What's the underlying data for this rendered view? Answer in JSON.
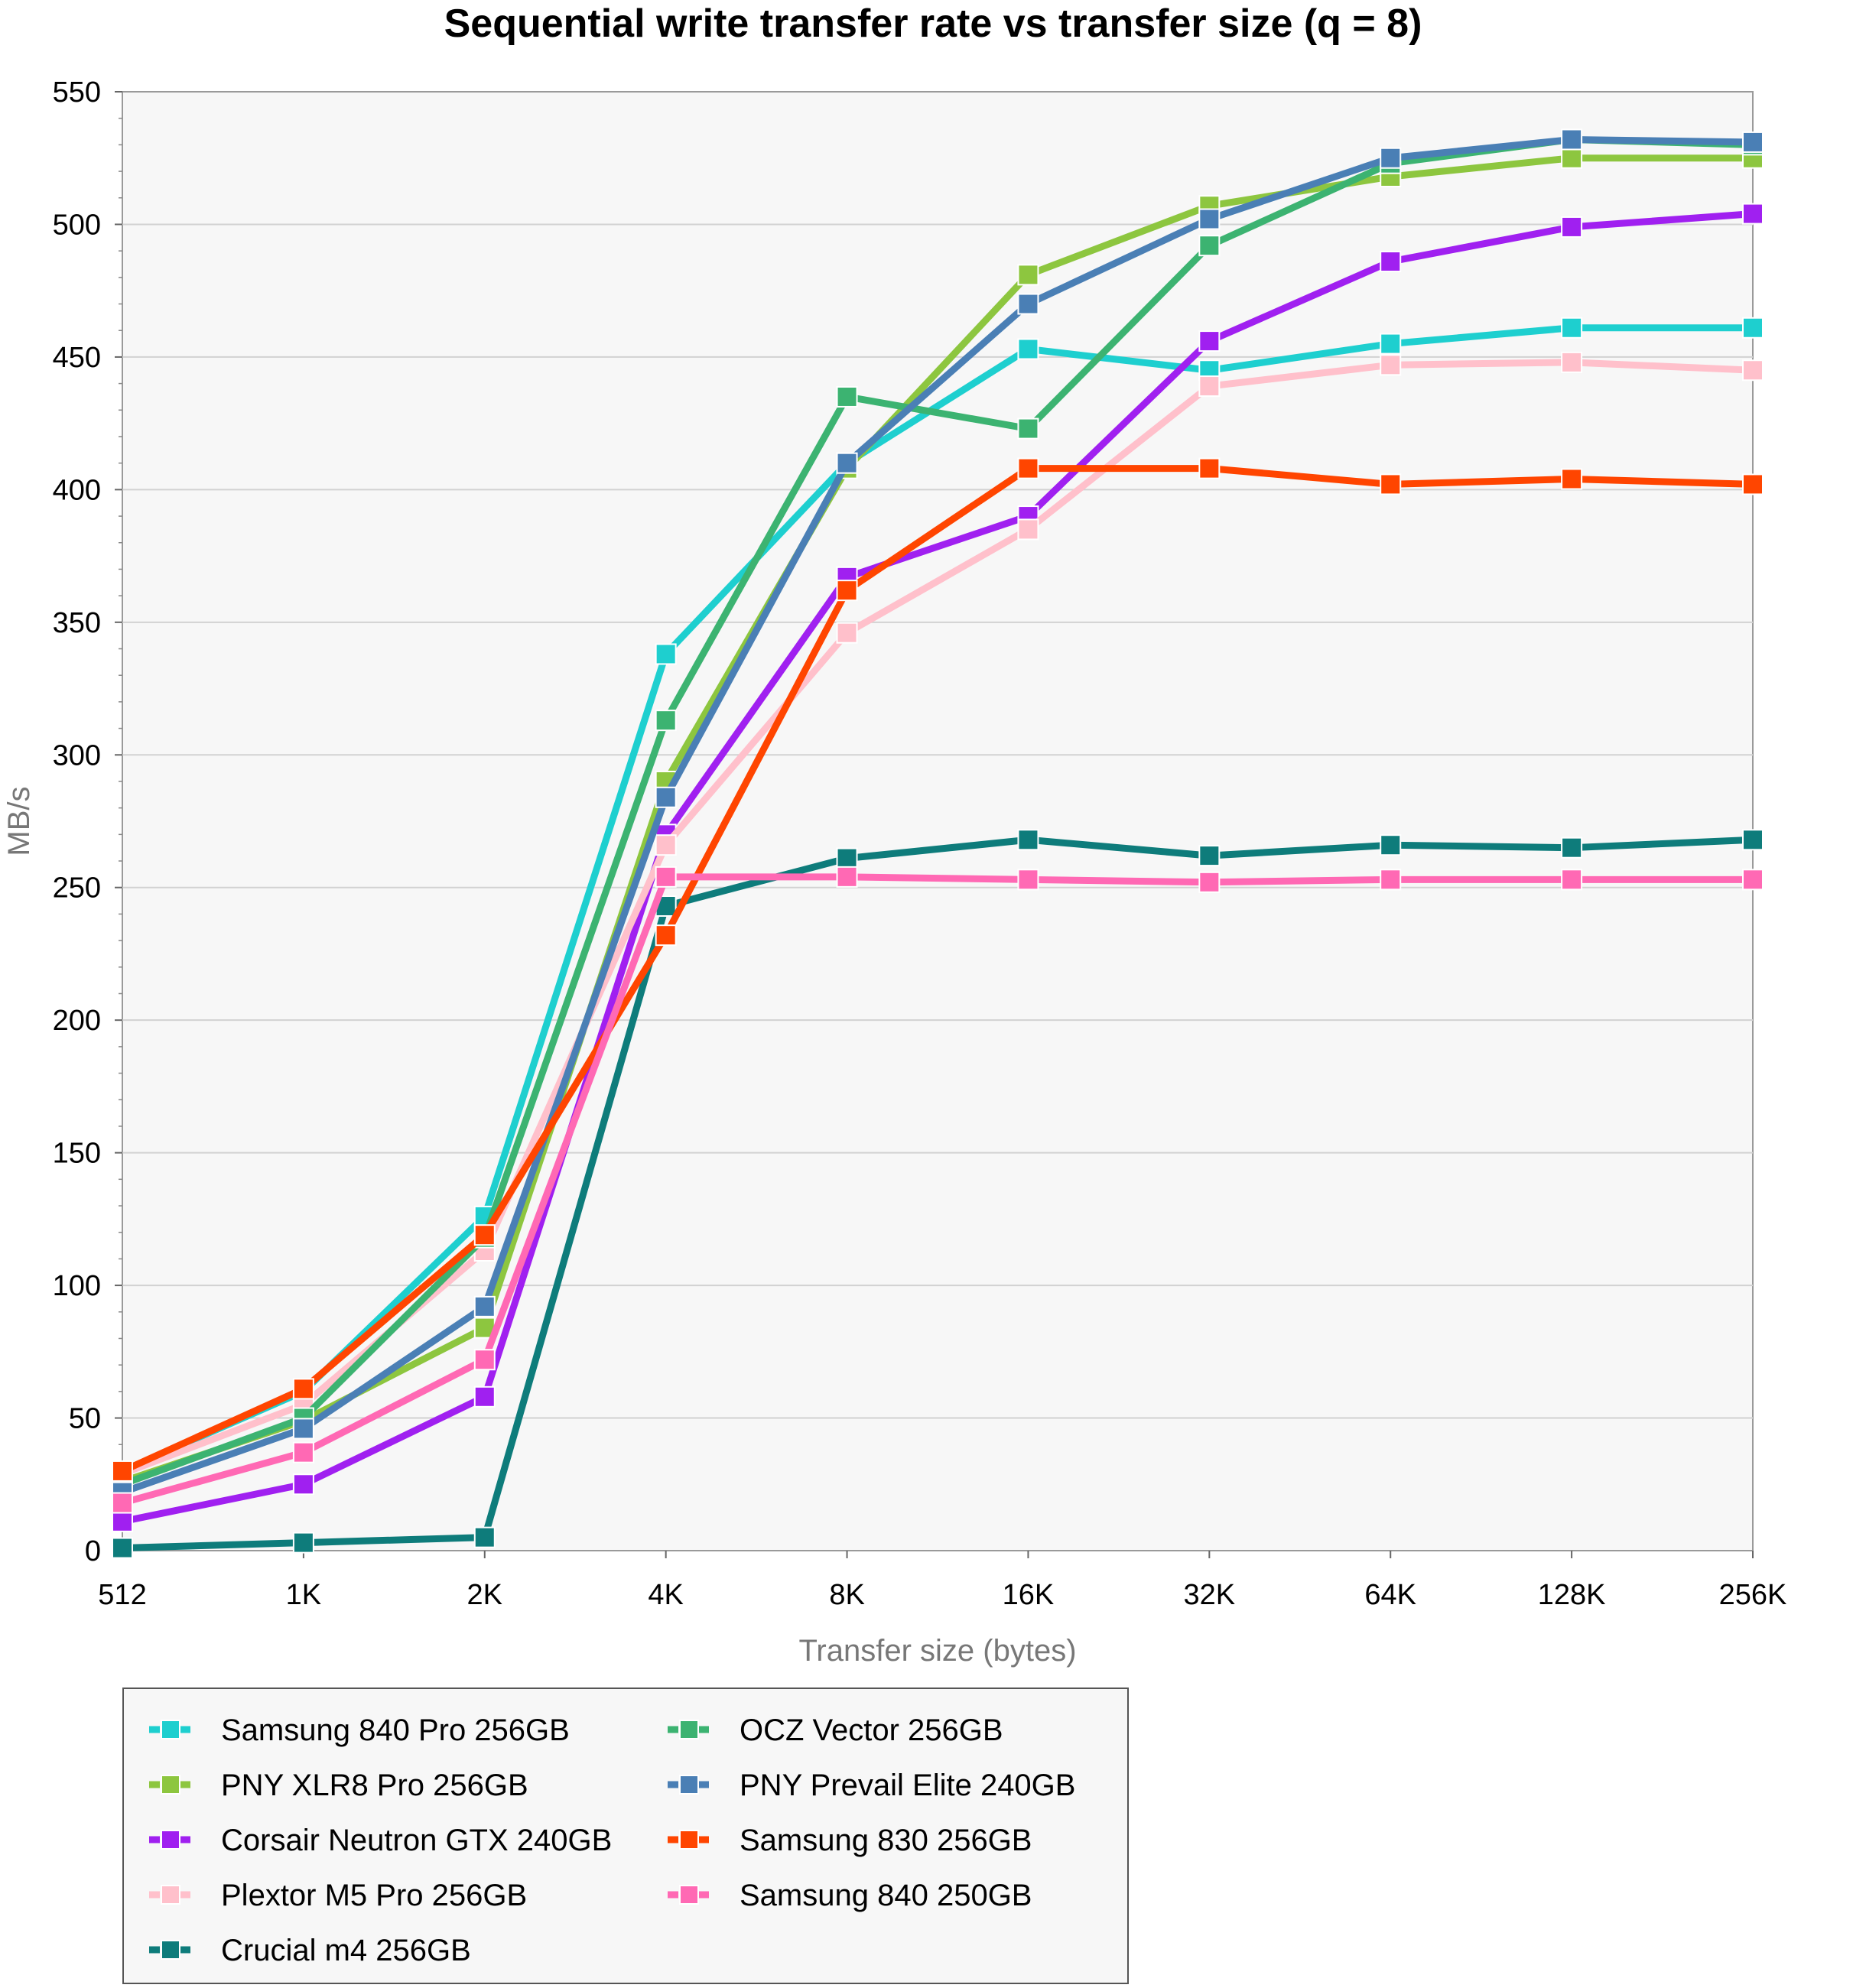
{
  "chart_data": {
    "type": "line",
    "title": "Sequential write transfer rate vs transfer size (q = 8)",
    "xlabel": "Transfer size (bytes)",
    "ylabel": "MB/s",
    "categories": [
      "512",
      "1K",
      "2K",
      "4K",
      "8K",
      "16K",
      "32K",
      "64K",
      "128K",
      "256K"
    ],
    "ylim": [
      0,
      550
    ],
    "yticks": [
      0,
      50,
      100,
      150,
      200,
      250,
      300,
      350,
      400,
      450,
      500,
      550
    ],
    "grid": true,
    "series": [
      {
        "name": "Samsung 840 Pro 256GB",
        "color": "#1ECFCF",
        "values": [
          30,
          60,
          126,
          338,
          410,
          453,
          445,
          455,
          461,
          461
        ]
      },
      {
        "name": "PNY XLR8 Pro 256GB",
        "color": "#8DC63F",
        "values": [
          26,
          49,
          84,
          290,
          408,
          481,
          507,
          518,
          525,
          525
        ]
      },
      {
        "name": "Corsair Neutron GTX 240GB",
        "color": "#A020F0",
        "values": [
          11,
          25,
          58,
          270,
          367,
          390,
          456,
          486,
          499,
          504
        ]
      },
      {
        "name": "Plextor M5 Pro 256GB",
        "color": "#FFC0CB",
        "values": [
          29,
          55,
          113,
          266,
          346,
          385,
          439,
          447,
          448,
          445
        ]
      },
      {
        "name": "Crucial m4 256GB",
        "color": "#0E7C7B",
        "values": [
          1,
          3,
          5,
          243,
          261,
          268,
          262,
          266,
          265,
          268
        ]
      },
      {
        "name": "OCZ Vector 256GB",
        "color": "#3CB371",
        "values": [
          25,
          50,
          118,
          313,
          435,
          423,
          492,
          523,
          532,
          530
        ]
      },
      {
        "name": "PNY Prevail Elite 240GB",
        "color": "#4A7FB5",
        "values": [
          22,
          46,
          92,
          284,
          410,
          470,
          502,
          525,
          532,
          531
        ]
      },
      {
        "name": "Samsung 830 256GB",
        "color": "#FF4500",
        "values": [
          30,
          61,
          119,
          232,
          362,
          408,
          408,
          402,
          404,
          402
        ]
      },
      {
        "name": "Samsung 840 250GB",
        "color": "#FF69B4",
        "values": [
          18,
          37,
          72,
          254,
          254,
          253,
          252,
          253,
          253,
          253
        ]
      }
    ]
  }
}
